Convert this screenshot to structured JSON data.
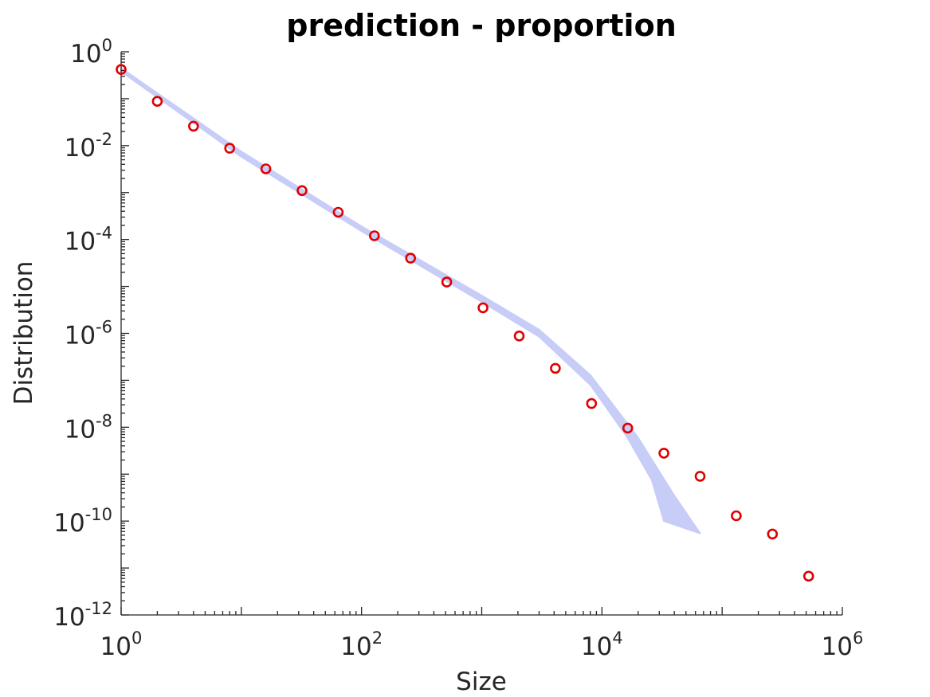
{
  "chart_data": {
    "type": "scatter",
    "title": "prediction - proportion",
    "xlabel": "Size",
    "ylabel": "Distribution",
    "x_scale": "log",
    "y_scale": "log",
    "xlim": [
      1,
      1000000
    ],
    "ylim": [
      1e-12,
      1
    ],
    "x_ticks": [
      {
        "base": "10",
        "exp": "0"
      },
      {
        "base": "10",
        "exp": "2"
      },
      {
        "base": "10",
        "exp": "4"
      },
      {
        "base": "10",
        "exp": "6"
      }
    ],
    "y_ticks": [
      {
        "base": "10",
        "exp": "0"
      },
      {
        "base": "10",
        "exp": "-2"
      },
      {
        "base": "10",
        "exp": "-4"
      },
      {
        "base": "10",
        "exp": "-6"
      },
      {
        "base": "10",
        "exp": "-8"
      },
      {
        "base": "10",
        "exp": "-10"
      },
      {
        "base": "10",
        "exp": "-12"
      }
    ],
    "grid": false,
    "legend": "none",
    "observed": {
      "marker": "circle",
      "color": "#e00000",
      "points": [
        [
          1,
          0.42
        ],
        [
          2,
          0.088
        ],
        [
          4,
          0.026
        ],
        [
          8,
          0.0088
        ],
        [
          16,
          0.0032
        ],
        [
          32,
          0.0011
        ],
        [
          64,
          0.00038
        ],
        [
          128,
          0.00012
        ],
        [
          256,
          4e-05
        ],
        [
          512,
          1.24e-05
        ],
        [
          1024,
          3.5e-06
        ],
        [
          2048,
          8.8e-07
        ],
        [
          4096,
          1.8e-07
        ],
        [
          8192,
          3.2e-08
        ],
        [
          16384,
          9.6e-09
        ],
        [
          32768,
          2.8e-09
        ],
        [
          65536,
          9e-10
        ],
        [
          131072,
          1.3e-10
        ],
        [
          262144,
          5.3e-11
        ],
        [
          524288,
          6.7e-12
        ]
      ]
    },
    "prediction_band": {
      "color": "#c8cdf7",
      "upper": [
        [
          1,
          0.45
        ],
        [
          10,
          0.0075
        ],
        [
          100,
          0.00019
        ],
        [
          1000,
          6.4e-06
        ],
        [
          3000,
          1.2e-06
        ],
        [
          8000,
          1.3e-07
        ],
        [
          20000,
          6e-09
        ],
        [
          40000,
          3.5e-10
        ],
        [
          65536,
          5.5e-11
        ]
      ],
      "lower": [
        [
          1,
          0.38
        ],
        [
          10,
          0.0058
        ],
        [
          100,
          0.00015
        ],
        [
          1000,
          4.7e-06
        ],
        [
          3000,
          8.5e-07
        ],
        [
          8000,
          8e-08
        ],
        [
          16000,
          6.5e-09
        ],
        [
          26000,
          7.5e-10
        ],
        [
          32768,
          1e-10
        ]
      ]
    }
  }
}
